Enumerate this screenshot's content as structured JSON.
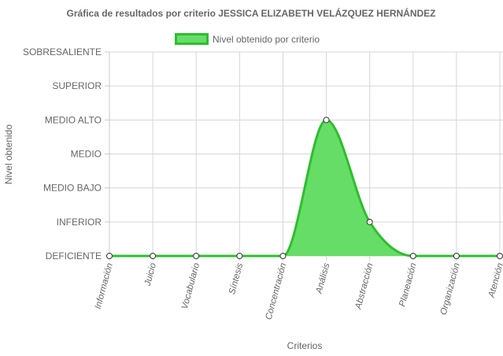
{
  "chart_data": {
    "type": "area",
    "title": "Gráfica de resultados por criterio JESSICA ELIZABETH VELÁZQUEZ HERNÁNDEZ",
    "xlabel": "Criterios",
    "ylabel": "Nivel obtenido",
    "y_levels": [
      "DEFICIENTE",
      "INFERIOR",
      "MEDIO BAJO",
      "MEDIO",
      "MEDIO ALTO",
      "SUPERIOR",
      "SOBRESALIENTE"
    ],
    "ylim": [
      0,
      6
    ],
    "categories": [
      "Información",
      "Juicio",
      "Vocabulario",
      "Síntesis",
      "Concentración",
      "Análisis",
      "Abstracción",
      "Planeación",
      "Organización",
      "Atención"
    ],
    "series": [
      {
        "name": "Nivel obtenido por criterio",
        "values": [
          0,
          0,
          0,
          0,
          0,
          4,
          1,
          0,
          0,
          0
        ],
        "color": "#2dbf2d",
        "fill": "#66dd66"
      }
    ],
    "grid": true,
    "legend_position": "top-center"
  }
}
